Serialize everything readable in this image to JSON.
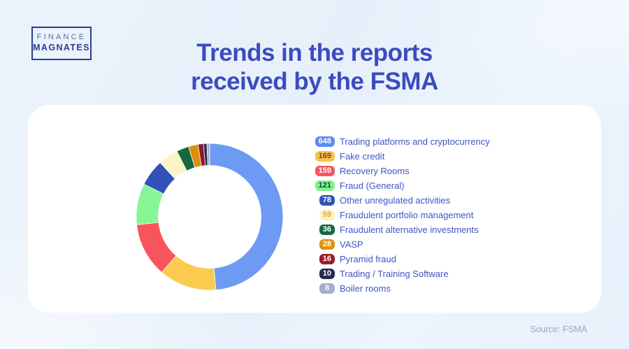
{
  "page": {
    "background": "#E9F1FA",
    "source_note": "Source: FSMA"
  },
  "logo": {
    "line1": "FINANCE",
    "line2": "MAGNATES",
    "border_color": "#2B3C8F"
  },
  "title": {
    "line1": "Trends in the reports",
    "line2": "received by the FSMA",
    "color": "#3B4CC0"
  },
  "chart_data": {
    "type": "pie",
    "donut": true,
    "title": "Trends in the reports received by the FSMA",
    "total": 1332,
    "start_angle_deg": 0,
    "direction": "clockwise",
    "legend_position": "right",
    "inner_radius_ratio": 0.7,
    "items": [
      {
        "label": "Trading platforms and cryptocurrency",
        "value": 648,
        "color": "#6D9AF3",
        "badge_bg": "#5C8CF0",
        "badge_text": "#FFFFFF"
      },
      {
        "label": "Fake credit",
        "value": 169,
        "color": "#FACB4F",
        "badge_bg": "#F7C347",
        "badge_text": "#8D3A28"
      },
      {
        "label": "Recovery Rooms",
        "value": 159,
        "color": "#F9545D",
        "badge_bg": "#F8535E",
        "badge_text": "#FFFFFF"
      },
      {
        "label": "Fraud (General)",
        "value": 121,
        "color": "#87F595",
        "badge_bg": "#80F28F",
        "badge_text": "#1C3B2E"
      },
      {
        "label": "Other unregulated activities",
        "value": 78,
        "color": "#2F51B8",
        "badge_bg": "#3353B5",
        "badge_text": "#FFFFFF"
      },
      {
        "label": "Fraudulent portfolio management",
        "value": 59,
        "color": "#FCF4C6",
        "badge_bg": "#FCF2C4",
        "badge_text": "#E9A23B"
      },
      {
        "label": "Fraudulent alternative investments",
        "value": 36,
        "color": "#15693D",
        "badge_bg": "#156B40",
        "badge_text": "#FFFFFF"
      },
      {
        "label": "VASP",
        "value": 28,
        "color": "#DD900F",
        "badge_bg": "#DE9114",
        "badge_text": "#FFFFFF"
      },
      {
        "label": "Pyramid fraud",
        "value": 16,
        "color": "#8E1A28",
        "badge_bg": "#9C1D2E",
        "badge_text": "#FFFFFF"
      },
      {
        "label": "Trading / Training Software",
        "value": 10,
        "color": "#272D55",
        "badge_bg": "#232A52",
        "badge_text": "#FFFFFF"
      },
      {
        "label": "Boiler rooms",
        "value": 8,
        "color": "#A8ACC4",
        "badge_bg": "#A7ADC8",
        "badge_text": "#FFFFFF"
      }
    ]
  }
}
